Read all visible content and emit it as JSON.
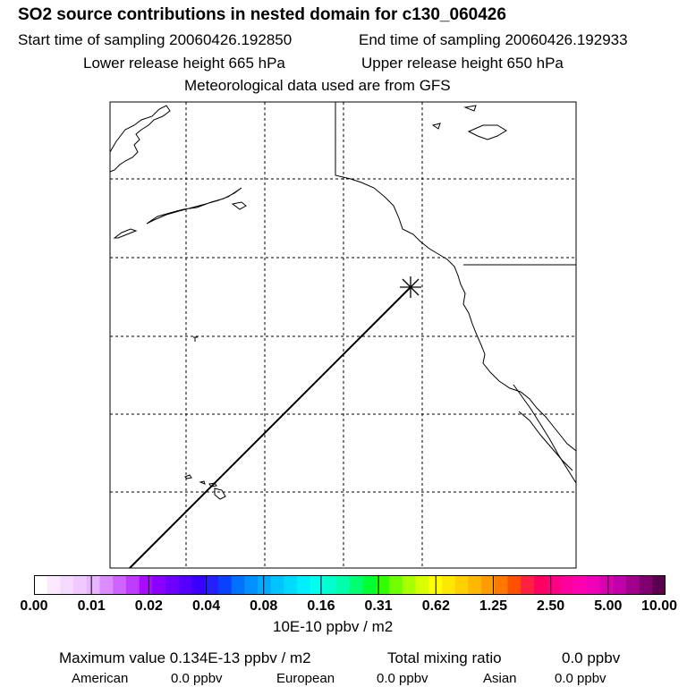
{
  "header": {
    "title": "SO2 source contributions in nested domain for c130_060426",
    "start": "Start time of sampling 20060426.192850",
    "end": "End time of sampling 20060426.192933",
    "lower": "Lower release height  665 hPa",
    "upper": "Upper release height  650 hPa",
    "met": "Meteorological data used are from GFS"
  },
  "colorbar": {
    "ticks": [
      "0.00",
      "0.01",
      "0.02",
      "0.04",
      "0.08",
      "0.16",
      "0.31",
      "0.62",
      "1.25",
      "2.50",
      "5.00",
      "10.00"
    ],
    "unit": "10E-10 ppbv / m2",
    "colors": [
      "#ffffff",
      "#fbeaff",
      "#f6d9ff",
      "#f1c8ff",
      "#eab5ff",
      "#dd8cff",
      "#ce63ff",
      "#be3aff",
      "#a90cff",
      "#8a00ff",
      "#6f00ff",
      "#5500ff",
      "#3a00ff",
      "#2420ff",
      "#0a40ff",
      "#0070ff",
      "#0090ff",
      "#00aaff",
      "#00c4ff",
      "#00daff",
      "#00efff",
      "#00ffee",
      "#00ffcc",
      "#00ffaa",
      "#00ff70",
      "#00ff30",
      "#30ff00",
      "#70ff00",
      "#a8ff00",
      "#d8ff00",
      "#ffff00",
      "#ffe800",
      "#ffd000",
      "#ffb800",
      "#ff9c00",
      "#ff7800",
      "#ff5000",
      "#ff2040",
      "#ff0060",
      "#ff0080",
      "#ff009c",
      "#ff00b0",
      "#f000b8",
      "#d800b0",
      "#c000a8",
      "#a0008c",
      "#800070",
      "#5c0050"
    ]
  },
  "footer": {
    "max": "Maximum value  0.134E-13 ppbv / m2",
    "total_label": "Total mixing ratio",
    "total_value": "0.0 ppbv",
    "american_label": "American",
    "american_value": "0.0 ppbv",
    "european_label": "European",
    "european_value": "0.0 ppbv",
    "asian_label": "Asian",
    "asian_value": "0.0 ppbv"
  }
}
